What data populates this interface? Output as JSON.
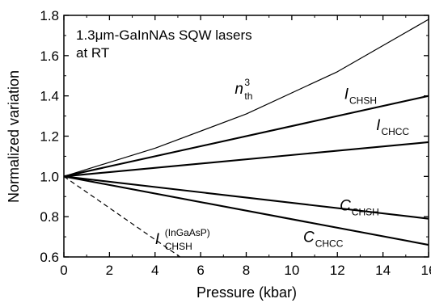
{
  "chart_data": {
    "type": "line",
    "title": "",
    "annotation_lines": [
      "1.3μm-GaInNAs SQW lasers",
      "at RT"
    ],
    "xlabel": "Pressure (kbar)",
    "ylabel": "Normalized variation",
    "xlim": [
      0,
      16
    ],
    "ylim": [
      0.6,
      1.8
    ],
    "x_ticks": [
      0,
      2,
      4,
      6,
      8,
      10,
      12,
      14,
      16
    ],
    "y_ticks": [
      0.6,
      0.8,
      1.0,
      1.2,
      1.4,
      1.6,
      1.8
    ],
    "x_tick_labels": [
      "0",
      "2",
      "4",
      "6",
      "8",
      "10",
      "12",
      "14",
      "16"
    ],
    "y_tick_labels": [
      "0.6",
      "0.8",
      "1.0",
      "1.2",
      "1.4",
      "1.6",
      "1.8"
    ],
    "grid": false,
    "series": [
      {
        "label_main": "n",
        "label_sub": "th",
        "label_sup": "3",
        "style": "thin",
        "color": "#000000",
        "x": [
          0,
          4,
          8,
          12,
          16
        ],
        "y": [
          1.0,
          1.14,
          1.31,
          1.52,
          1.78
        ],
        "label_at": [
          7.5,
          1.41
        ]
      },
      {
        "label_main": "I",
        "label_sub": "CHSH",
        "label_sup": "",
        "style": "thick",
        "color": "#000000",
        "x": [
          0,
          16
        ],
        "y": [
          1.0,
          1.4
        ],
        "label_at": [
          12.3,
          1.385
        ]
      },
      {
        "label_main": "I",
        "label_sub": "CHCC",
        "label_sup": "",
        "style": "thick",
        "color": "#000000",
        "x": [
          0,
          16
        ],
        "y": [
          1.0,
          1.17
        ],
        "label_at": [
          13.7,
          1.23
        ]
      },
      {
        "label_main": "C",
        "label_sub": "CHSH",
        "label_sup": "",
        "style": "thick",
        "color": "#000000",
        "x": [
          0,
          16
        ],
        "y": [
          1.0,
          0.79
        ],
        "label_at": [
          12.1,
          0.83
        ]
      },
      {
        "label_main": "C",
        "label_sub": "CHCC",
        "label_sup": "",
        "style": "thick",
        "color": "#000000",
        "x": [
          0,
          16
        ],
        "y": [
          1.0,
          0.66
        ],
        "label_at": [
          10.5,
          0.675
        ]
      },
      {
        "label_main": "I",
        "label_sub": "CHSH",
        "label_sup": "(InGaAsP)",
        "style": "dashed",
        "color": "#000000",
        "x": [
          0,
          5.1
        ],
        "y": [
          1.0,
          0.6
        ],
        "label_at": [
          4.0,
          0.665
        ]
      }
    ]
  }
}
